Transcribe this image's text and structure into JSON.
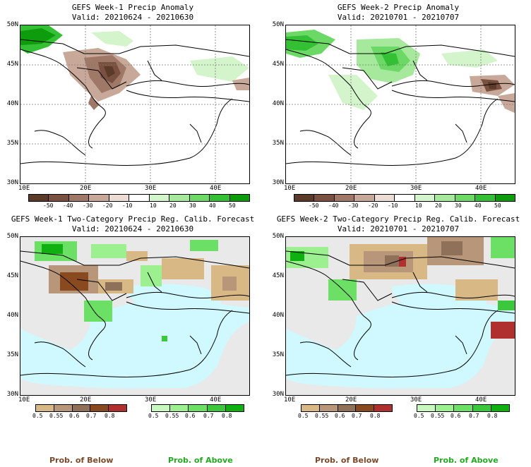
{
  "panels": [
    {
      "title": "GEFS Week-1 Precip Anomaly",
      "valid": "Valid: 20210624 - 20210630",
      "type": "anomaly",
      "lat_labels": [
        "50N",
        "45N",
        "40N",
        "35N",
        "30N"
      ],
      "lon_labels": [
        "10E",
        "20E",
        "30E",
        "40E"
      ],
      "colorbar_labels": [
        "-50",
        "-40",
        "-30",
        "-20",
        "-10",
        "10",
        "20",
        "30",
        "40",
        "50"
      ]
    },
    {
      "title": "GEFS Week-2 Precip Anomaly",
      "valid": "Valid: 20210701 - 20210707",
      "type": "anomaly",
      "lat_labels": [
        "50N",
        "45N",
        "40N",
        "35N",
        "30N"
      ],
      "lon_labels": [
        "10E",
        "20E",
        "30E",
        "40E"
      ],
      "colorbar_labels": [
        "-50",
        "-40",
        "-30",
        "-20",
        "-10",
        "10",
        "20",
        "30",
        "40",
        "50"
      ]
    },
    {
      "title": "GEFS Week-1 Two-Category Precip Reg. Calib. Forecast",
      "valid": "Valid: 20210624 - 20210630",
      "type": "category",
      "lat_labels": [
        "50N",
        "45N",
        "40N",
        "35N",
        "30N"
      ],
      "lon_labels": [
        "10E",
        "20E",
        "30E",
        "40E"
      ],
      "below_labels": [
        "0.5",
        "0.55",
        "0.6",
        "0.7",
        "0.8"
      ],
      "above_labels": [
        "0.5",
        "0.55",
        "0.6",
        "0.7",
        "0.8"
      ]
    },
    {
      "title": "GEFS Week-2 Two-Category Precip Reg. Calib. Forecast",
      "valid": "Valid: 20210701 - 20210707",
      "type": "category",
      "lat_labels": [
        "50N",
        "45N",
        "40N",
        "35N",
        "30N"
      ],
      "lon_labels": [
        "10E",
        "20E",
        "30E",
        "40E"
      ],
      "below_labels": [
        "0.5",
        "0.55",
        "0.6",
        "0.7",
        "0.8"
      ],
      "above_labels": [
        "0.5",
        "0.55",
        "0.6",
        "0.7",
        "0.8"
      ]
    }
  ],
  "footer": {
    "below_1": "Prob. of Below",
    "above_1": "Prob. of Above",
    "below_2": "Prob. of Below",
    "above_2": "Prob. of Above"
  },
  "colors": {
    "anomaly_scale": [
      "#5c3a2a",
      "#7a5040",
      "#a07868",
      "#c8a898",
      "#ecdcd4",
      "#ffffff",
      "#d4f4cc",
      "#a6e89c",
      "#6cd866",
      "#34c034",
      "#0c9c0c"
    ],
    "below_scale": [
      "#d8b884",
      "#b8967a",
      "#8f7058",
      "#8a4a20",
      "#b03030"
    ],
    "above_scale": [
      "#c8f8c0",
      "#9cf090",
      "#6ce064",
      "#3cc83c",
      "#10b010"
    ],
    "sea": "#cff8ff",
    "land_gray": "#e9e9e9",
    "below_text": "#7a4a2a",
    "above_text": "#22aa22"
  }
}
